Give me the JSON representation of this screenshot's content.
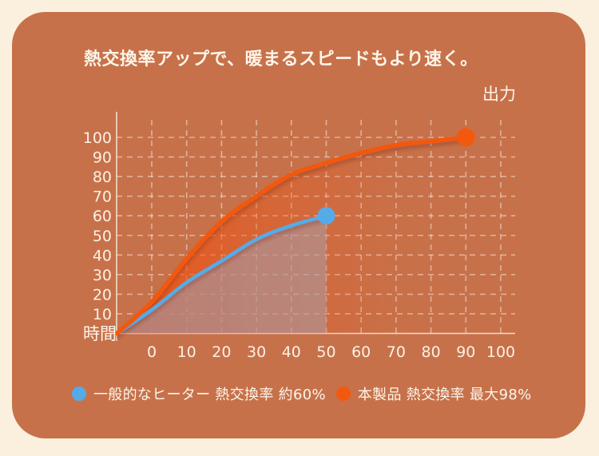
{
  "page": {
    "background_color": "#faf0dd",
    "card_color": "#c7714a"
  },
  "title": "熱交換率アップで、暖まるスピードもより速く。",
  "chart_data": {
    "type": "line",
    "title": "熱交換率アップで、暖まるスピードもより速く。",
    "x_axis_label": "時間",
    "y_axis_label": "出力",
    "x_ticks": [
      0,
      10,
      20,
      30,
      40,
      50,
      60,
      70,
      80,
      90,
      100
    ],
    "y_ticks": [
      10,
      20,
      30,
      40,
      50,
      60,
      70,
      80,
      90,
      100
    ],
    "xlim": [
      -10,
      104
    ],
    "ylim": [
      0,
      108
    ],
    "grid": "dashed",
    "legend_position": "bottom",
    "note": "Both curves rise from the axes origin, one grid cell left of the '0' tick label; each ends in a filled dot.",
    "series": [
      {
        "name": "一般的なヒーター 熱交換率 約60%",
        "color": "#55abe8",
        "area_style": "gray-translucent",
        "points": [
          [
            -10,
            0
          ],
          [
            0,
            12
          ],
          [
            10,
            26
          ],
          [
            20,
            37
          ],
          [
            30,
            48
          ],
          [
            40,
            55
          ],
          [
            50,
            60
          ]
        ],
        "endpoint": [
          50,
          60
        ]
      },
      {
        "name": "本製品 熱交換率 最大98%",
        "color": "#f2590e",
        "area_style": "orange-gradient",
        "points": [
          [
            -10,
            0
          ],
          [
            0,
            16
          ],
          [
            10,
            38
          ],
          [
            20,
            57
          ],
          [
            30,
            70
          ],
          [
            40,
            81
          ],
          [
            50,
            87
          ],
          [
            60,
            92
          ],
          [
            70,
            96
          ],
          [
            80,
            98
          ],
          [
            90,
            100
          ]
        ],
        "endpoint": [
          90,
          100
        ]
      }
    ]
  }
}
